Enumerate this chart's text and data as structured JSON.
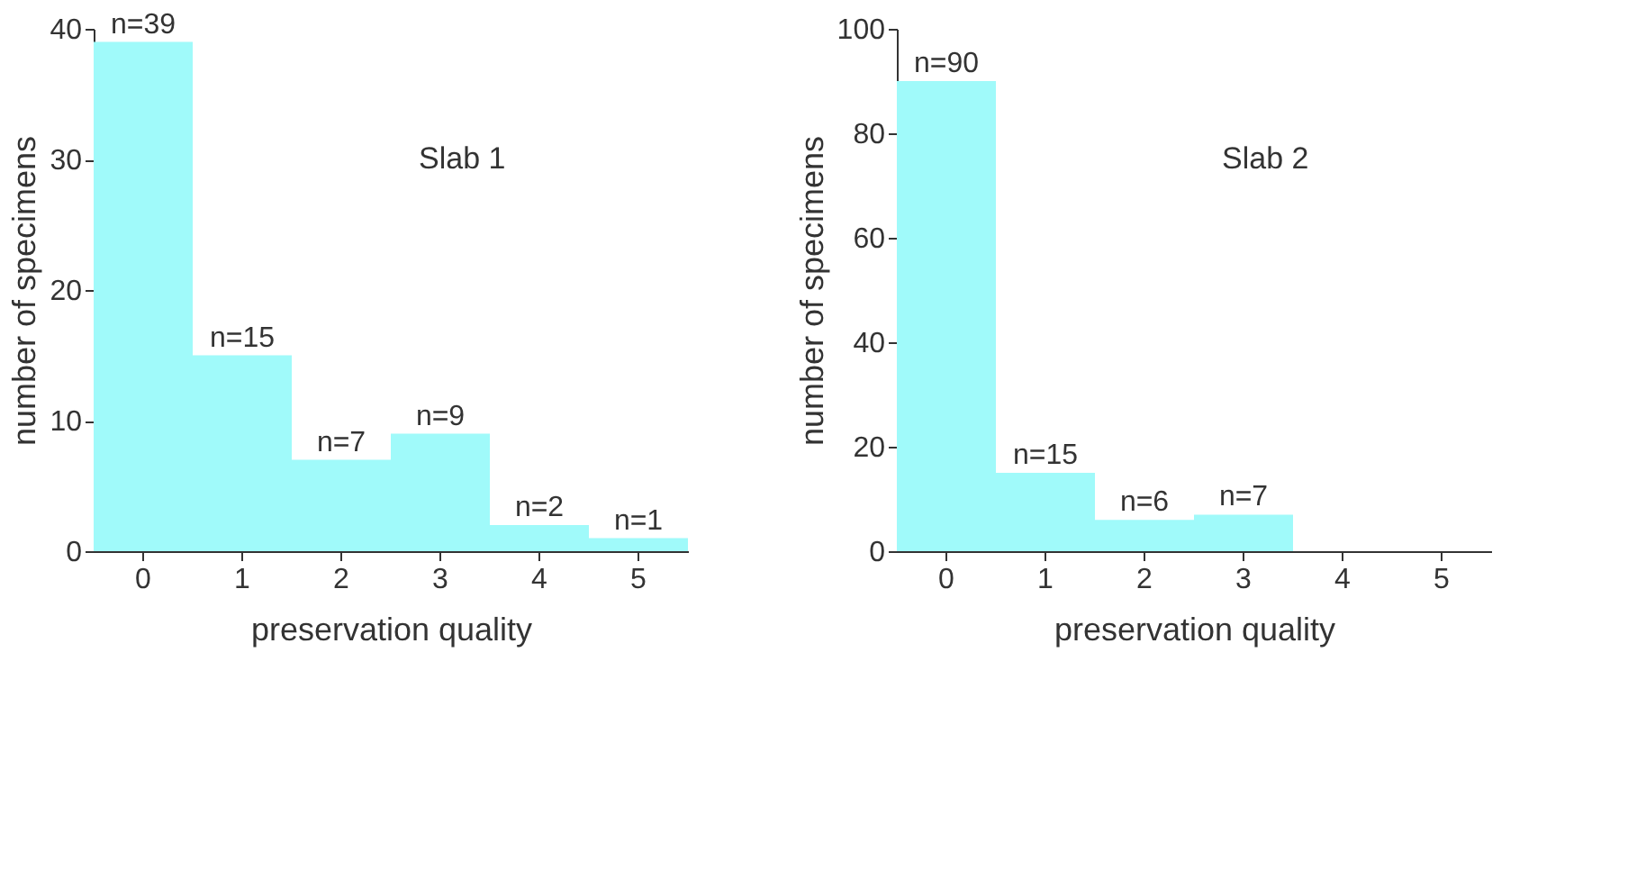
{
  "chart_data": [
    {
      "type": "bar",
      "categories": [
        "0",
        "1",
        "2",
        "3",
        "4",
        "5"
      ],
      "values": [
        39,
        15,
        7,
        9,
        2,
        1
      ],
      "value_labels": [
        "n=39",
        "n=15",
        "n=7",
        "n=9",
        "n=2",
        "n=1"
      ],
      "color": "#a0fafa",
      "xlabel": "preservation quality",
      "ylabel": "number of specimens",
      "ylim": [
        0,
        40
      ],
      "yticks": [
        0,
        10,
        20,
        30,
        40
      ],
      "annotations": [
        "Slab 1"
      ],
      "grid": false
    },
    {
      "type": "bar",
      "categories": [
        "0",
        "1",
        "2",
        "3",
        "4",
        "5"
      ],
      "values": [
        90,
        15,
        6,
        7,
        null,
        null
      ],
      "value_labels": [
        "n=90",
        "n=15",
        "n=6",
        "n=7",
        null,
        null
      ],
      "color": "#a0fafa",
      "xlabel": "preservation quality",
      "ylabel": "number of specimens",
      "ylim": [
        0,
        100
      ],
      "yticks": [
        0,
        20,
        40,
        60,
        80,
        100
      ],
      "annotations": [
        "Slab 2"
      ],
      "grid": false
    }
  ]
}
